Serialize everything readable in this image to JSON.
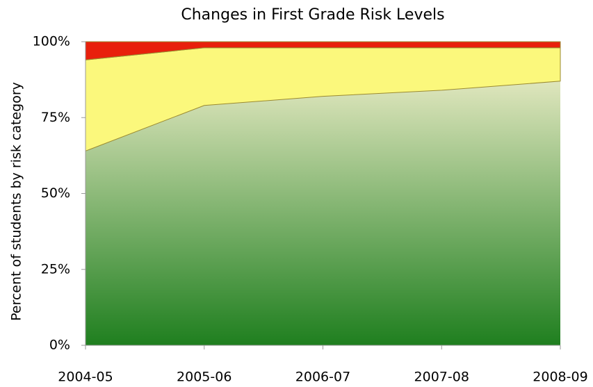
{
  "chart_data": {
    "type": "stacked-area",
    "title": "Changes in First Grade Risk Levels",
    "y_label": "Percent of students by risk category",
    "categories": [
      "2004-05",
      "2005-06",
      "2006-07",
      "2007-08",
      "2008-09"
    ],
    "series": [
      {
        "color": "#1f7f1f",
        "values": [
          64,
          79,
          82,
          84,
          87
        ]
      },
      {
        "color": "#fbf87c",
        "values": [
          30,
          19,
          16,
          14,
          11
        ]
      },
      {
        "color": "#e8200c",
        "values": [
          6,
          2,
          2,
          2,
          2
        ]
      }
    ],
    "ylim": [
      0,
      100
    ],
    "yticks": [
      {
        "value": 0,
        "label": "0%"
      },
      {
        "value": 25,
        "label": "25%"
      },
      {
        "value": 50,
        "label": "50%"
      },
      {
        "value": 75,
        "label": "75%"
      },
      {
        "value": 100,
        "label": "100%"
      }
    ],
    "grid": false
  }
}
